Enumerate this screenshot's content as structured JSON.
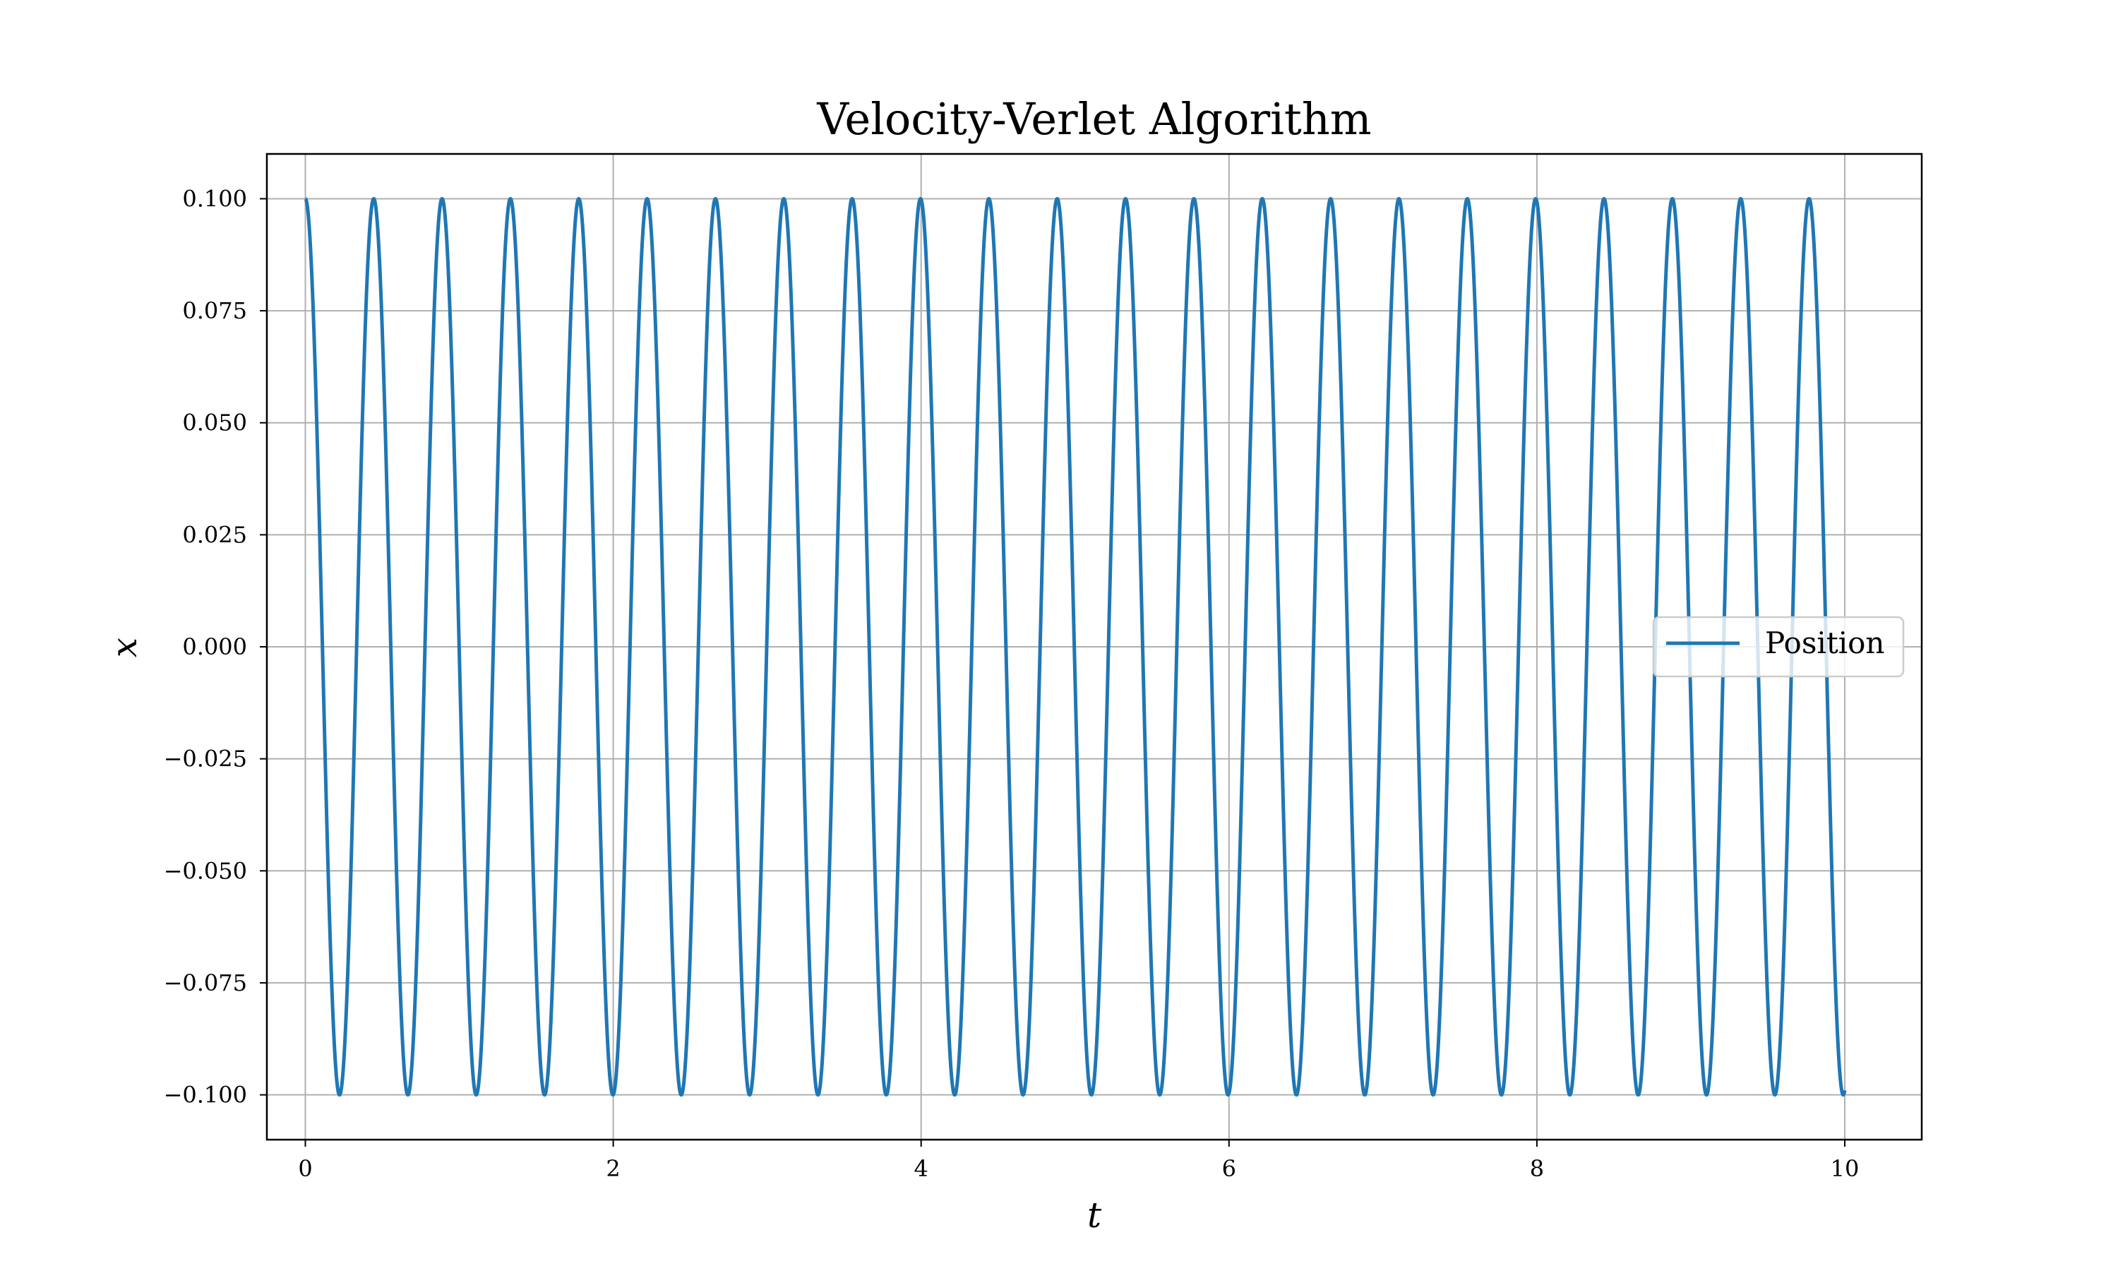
{
  "chart_data": {
    "type": "line",
    "title": "Velocity-Verlet Algorithm",
    "xlabel": "t",
    "ylabel": "x",
    "xlim": [
      -0.25,
      10.5
    ],
    "ylim": [
      -0.11,
      0.11
    ],
    "x_ticks": [
      0,
      2,
      4,
      6,
      8,
      10
    ],
    "x_tick_labels": [
      "0",
      "2",
      "4",
      "6",
      "8",
      "10"
    ],
    "y_ticks": [
      0.1,
      0.075,
      0.05,
      0.025,
      0.0,
      -0.025,
      -0.05,
      -0.075,
      -0.1
    ],
    "y_tick_labels": [
      "0.100",
      "0.075",
      "0.050",
      "0.025",
      "0.000",
      "−0.025",
      "−0.050",
      "−0.075",
      "−0.100"
    ],
    "grid": true,
    "legend_position": "center-right",
    "series": [
      {
        "name": "Position",
        "color": "#1f77b4",
        "function": "0.1*cos(2*pi*t/0.444)",
        "x_range": [
          0,
          10
        ],
        "amplitude": 0.1,
        "period": 0.444,
        "initial_value": 0.1,
        "sample_points": [
          [
            0.0,
            0.1
          ],
          [
            0.222,
            -0.1
          ],
          [
            0.444,
            0.1
          ],
          [
            0.667,
            -0.1
          ],
          [
            0.889,
            0.1
          ],
          [
            1.111,
            -0.1
          ],
          [
            1.333,
            0.1
          ],
          [
            1.556,
            -0.1
          ],
          [
            1.778,
            0.1
          ],
          [
            2.0,
            -0.1
          ],
          [
            2.222,
            0.1
          ],
          [
            2.444,
            -0.1
          ],
          [
            2.667,
            0.1
          ],
          [
            2.889,
            -0.1
          ],
          [
            3.111,
            0.1
          ],
          [
            3.333,
            -0.1
          ],
          [
            3.556,
            0.1
          ],
          [
            3.778,
            -0.1
          ],
          [
            4.0,
            0.1
          ],
          [
            4.222,
            -0.1
          ],
          [
            4.444,
            0.1
          ],
          [
            4.667,
            -0.1
          ],
          [
            4.889,
            0.1
          ],
          [
            5.111,
            -0.1
          ],
          [
            5.333,
            0.1
          ],
          [
            5.556,
            -0.1
          ],
          [
            5.778,
            0.1
          ],
          [
            6.0,
            -0.1
          ],
          [
            6.222,
            0.1
          ],
          [
            6.444,
            -0.1
          ],
          [
            6.667,
            0.1
          ],
          [
            6.889,
            -0.1
          ],
          [
            7.111,
            0.1
          ],
          [
            7.333,
            -0.1
          ],
          [
            7.556,
            0.1
          ],
          [
            7.778,
            -0.1
          ],
          [
            8.0,
            0.1
          ],
          [
            8.222,
            -0.1
          ],
          [
            8.444,
            0.1
          ],
          [
            8.667,
            -0.1
          ],
          [
            8.889,
            0.1
          ],
          [
            9.111,
            -0.1
          ],
          [
            9.333,
            0.1
          ],
          [
            9.556,
            -0.1
          ],
          [
            9.778,
            0.1
          ],
          [
            10.0,
            -0.1
          ]
        ]
      }
    ]
  }
}
